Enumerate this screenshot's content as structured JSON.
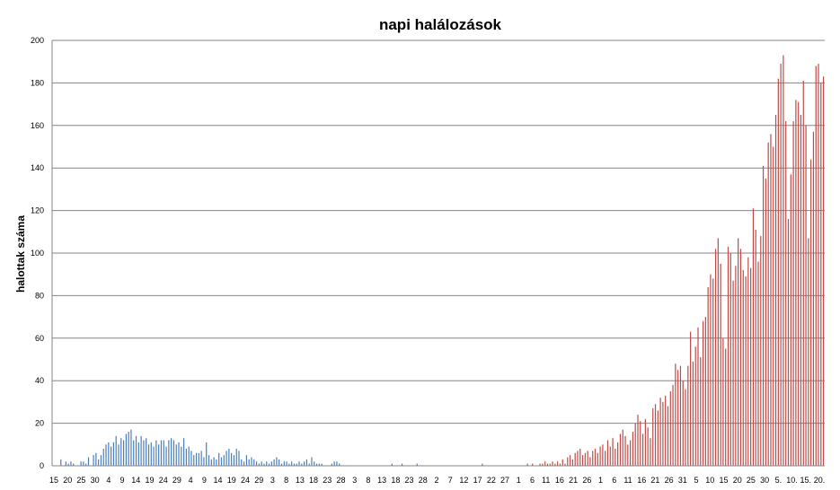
{
  "chart_data": {
    "type": "bar",
    "title": "napi halálozások",
    "xlabel": "",
    "ylabel": "halottak száma",
    "ylim": [
      0,
      200
    ],
    "y_ticks": [
      0,
      20,
      40,
      60,
      80,
      100,
      120,
      140,
      160,
      180,
      200
    ],
    "grid": true,
    "legend": "none",
    "colors": {
      "first_wave": "#4a7ebb",
      "second_wave": "#be4b48",
      "grid": "#868686",
      "axis": "#868686"
    },
    "x_tick_labels": [
      "15",
      "20",
      "25",
      "30",
      "4",
      "9",
      "14",
      "19",
      "24",
      "29",
      "4",
      "9",
      "14",
      "19",
      "24",
      "29",
      "3",
      "8",
      "13",
      "18",
      "23",
      "28",
      "3",
      "8",
      "13",
      "18",
      "23",
      "28",
      "2",
      "7",
      "12",
      "17",
      "22",
      "27",
      "1",
      "6",
      "11",
      "16",
      "21",
      "26",
      "1",
      "6",
      "11",
      "16",
      "21",
      "26",
      "31",
      "5",
      "10",
      "15",
      "20",
      "25",
      "30",
      "5.",
      "10.",
      "15.",
      "20."
    ],
    "series": [
      {
        "color": "#4a7ebb",
        "values": [
          0,
          0,
          0,
          3,
          0,
          2,
          1,
          2,
          1,
          0,
          0,
          2,
          2,
          1,
          4,
          0,
          5,
          6,
          3,
          5,
          8,
          10,
          11,
          9,
          11,
          14,
          10,
          13,
          12,
          15,
          16,
          17,
          12,
          14,
          11,
          14,
          12,
          13,
          10,
          11,
          9,
          12,
          10,
          12,
          12,
          9,
          12,
          13,
          12,
          10,
          11,
          9,
          13,
          8,
          9,
          7,
          5,
          6,
          6,
          7,
          4,
          11,
          5,
          3,
          4,
          3,
          6,
          4,
          5,
          7,
          8,
          6,
          5,
          8,
          7,
          3,
          2,
          5,
          3,
          4,
          3,
          2,
          1,
          2,
          1,
          2,
          1,
          2,
          3,
          4,
          3,
          1,
          2,
          2,
          1,
          2,
          1,
          1,
          2,
          1,
          2,
          3,
          1,
          4,
          2,
          1,
          1,
          1,
          0,
          0,
          0,
          1,
          2,
          2,
          1,
          0,
          0,
          0,
          0,
          0,
          0,
          0,
          0,
          0,
          0,
          0,
          0,
          0,
          0,
          0,
          0,
          0,
          0,
          0,
          0,
          1,
          0,
          0,
          0,
          1,
          0,
          0,
          0,
          0,
          0,
          1,
          0,
          0,
          0,
          0,
          0,
          0,
          0,
          0,
          0,
          0,
          0,
          0,
          0,
          0,
          0,
          0,
          0,
          0,
          0,
          0,
          0,
          0,
          0,
          0,
          0,
          1,
          0,
          0,
          0,
          0,
          0,
          0,
          0,
          0,
          0,
          0,
          0,
          0,
          0,
          0,
          0,
          0,
          0
        ]
      },
      {
        "color": "#be4b48",
        "values": [
          1,
          0,
          1,
          0,
          0,
          1,
          1,
          2,
          1,
          1,
          2,
          1,
          2,
          1,
          3,
          1,
          4,
          5,
          3,
          6,
          7,
          8,
          5,
          6,
          7,
          4,
          7,
          8,
          6,
          9,
          10,
          7,
          12,
          9,
          13,
          8,
          11,
          15,
          17,
          14,
          10,
          12,
          16,
          20,
          24,
          21,
          15,
          22,
          18,
          13,
          27,
          29,
          26,
          32,
          30,
          33,
          28,
          35,
          38,
          48,
          45,
          47,
          40,
          36,
          47,
          63,
          49,
          56,
          65,
          51,
          68,
          70,
          84,
          90,
          88,
          102,
          107,
          95,
          60,
          55,
          103,
          100,
          87,
          94,
          107,
          102,
          92,
          89,
          98,
          93,
          121,
          111,
          96,
          108,
          141,
          135,
          152,
          156,
          150,
          165,
          182,
          189,
          193,
          162,
          116,
          137,
          162,
          172,
          171,
          165,
          181,
          160,
          107,
          144,
          157,
          188,
          189,
          180,
          183
        ]
      }
    ]
  }
}
